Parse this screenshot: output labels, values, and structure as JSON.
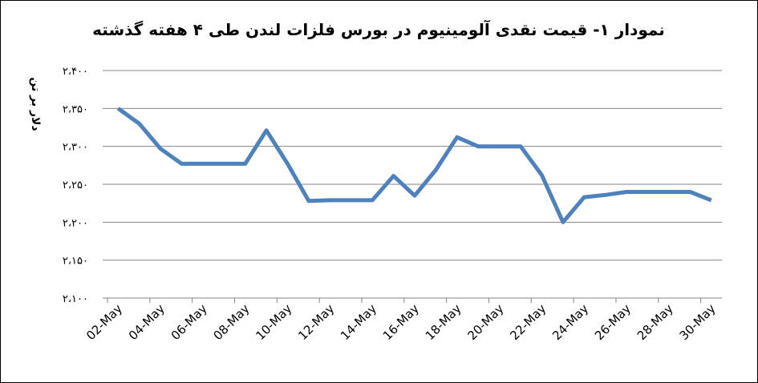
{
  "chart_data": {
    "type": "line",
    "title": "نمودار ۱- قیمت نقدی آلومینیوم در بورس فلزات لندن طی ۴ هفته گذشته",
    "y_label": "دلار بر تن",
    "categories": [
      "02-May",
      null,
      "04-May",
      null,
      "06-May",
      null,
      "08-May",
      null,
      "10-May",
      null,
      "12-May",
      null,
      "14-May",
      null,
      "16-May",
      null,
      "18-May",
      null,
      "20-May",
      null,
      "22-May",
      null,
      "24-May",
      null,
      "26-May",
      null,
      "28-May",
      null,
      "30-May"
    ],
    "series": [
      {
        "name": "قیمت نقدی آلومینیوم",
        "color": "#4f81bd",
        "values": [
          2350,
          2330,
          2297,
          2277,
          2277,
          2277,
          2277,
          2321,
          2277,
          2228,
          2229,
          2229,
          2229,
          2261,
          2235,
          2269,
          2312,
          2300,
          2300,
          2300,
          2262,
          2200,
          2233,
          2236,
          2240,
          2240,
          2240,
          2240,
          2229
        ]
      }
    ],
    "ylim": [
      2100,
      2400
    ],
    "yticks": [
      {
        "value": 2100,
        "label": "۲،۱۰۰"
      },
      {
        "value": 2150,
        "label": "۲،۱۵۰"
      },
      {
        "value": 2200,
        "label": "۲،۲۰۰"
      },
      {
        "value": 2250,
        "label": "۲،۲۵۰"
      },
      {
        "value": 2300,
        "label": "۲،۳۰۰"
      },
      {
        "value": 2350,
        "label": "۲،۳۵۰"
      },
      {
        "value": 2400,
        "label": "۲،۴۰۰"
      }
    ],
    "grid": true
  }
}
